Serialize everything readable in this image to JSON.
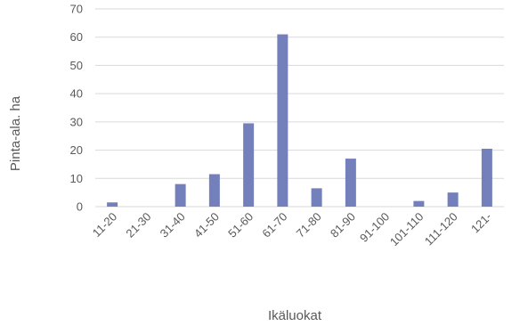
{
  "chart_data": {
    "type": "bar",
    "title": "",
    "xlabel": "Ikäluokat",
    "ylabel": "Pinta-ala. ha",
    "categories": [
      "11-20",
      "21-30",
      "31-40",
      "41-50",
      "51-60",
      "61-70",
      "71-80",
      "81-90",
      "91-100",
      "101-110",
      "111-120",
      "121-"
    ],
    "values": [
      1.5,
      0,
      8,
      11.5,
      29.5,
      61,
      6.5,
      17,
      0,
      2,
      5,
      20.5
    ],
    "ylim": [
      0,
      70
    ],
    "yticks": [
      "0",
      "10",
      "20",
      "30",
      "40",
      "50",
      "60",
      "70"
    ],
    "grid": true,
    "bar_color": "#7480bb",
    "legend": "none"
  }
}
